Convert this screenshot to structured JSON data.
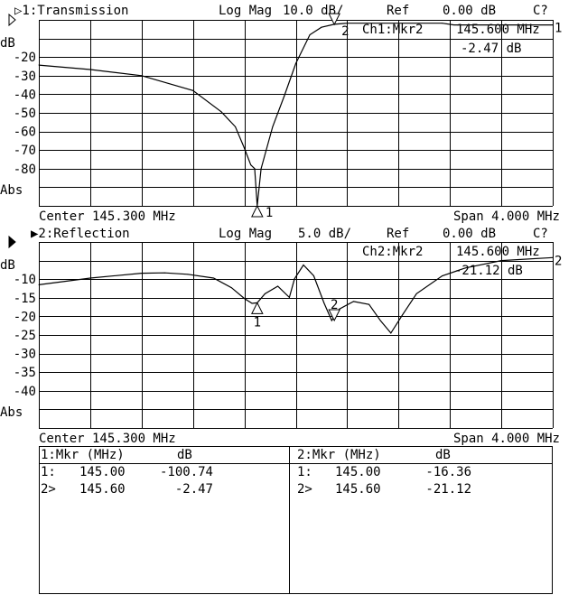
{
  "colors": {
    "background": "#ffffff",
    "trace": "#000000",
    "grid": "#000000"
  },
  "chart_data": [
    {
      "type": "line",
      "channel_label": "▷1:Transmission",
      "format": "Log Mag",
      "scale": "10.0 dB/",
      "ref_label": "Ref",
      "ref_value": "0.00 dB",
      "status": "C?",
      "ylabel": "dB",
      "yticks": [
        "-20",
        "-30",
        "-40",
        "-50",
        "-60",
        "-70",
        "-80"
      ],
      "ybottom_label": "Abs",
      "ylim": [
        -100,
        0
      ],
      "xlim": [
        143.3,
        147.3
      ],
      "grid": true,
      "center_label": "Center 145.300 MHz",
      "span_label": "Span 4.000 MHz",
      "trace_end_label": "1",
      "marker_readout": {
        "title": "Ch1:Mkr2",
        "freq": "145.600 MHz",
        "value": "-2.47 dB"
      },
      "markers": [
        {
          "id": "1",
          "freq": 145.0,
          "value": -100.74
        },
        {
          "id": "2",
          "freq": 145.6,
          "value": -2.47
        }
      ],
      "x": [
        143.3,
        143.7,
        144.1,
        144.5,
        144.72,
        144.83,
        144.9,
        144.95,
        144.98,
        145.0,
        145.03,
        145.12,
        145.21,
        145.3,
        145.41,
        145.5,
        145.6,
        145.7,
        146.44,
        146.53,
        147.3
      ],
      "y": [
        -24.3,
        -26.7,
        -30,
        -38,
        -49.4,
        -57.5,
        -69,
        -78,
        -80,
        -100,
        -80,
        -57.5,
        -41,
        -23.5,
        -8,
        -4,
        -2.4,
        -1.8,
        -1.8,
        -2.7,
        -2.7
      ]
    },
    {
      "type": "line",
      "channel_label": "▶2:Reflection",
      "format": "Log Mag",
      "scale": "5.0 dB/",
      "ref_label": "Ref",
      "ref_value": "0.00 dB",
      "status": "C?",
      "ylabel": "dB",
      "yticks": [
        "-10",
        "-15",
        "-20",
        "-25",
        "-30",
        "-35",
        "-40"
      ],
      "ybottom_label": "Abs",
      "ylim": [
        -50,
        0
      ],
      "xlim": [
        143.3,
        147.3
      ],
      "grid": true,
      "center_label": "Center 145.300 MHz",
      "span_label": "Span 4.000 MHz",
      "trace_end_label": "2",
      "marker_readout": {
        "title": "Ch2:Mkr2",
        "freq": "145.600 MHz",
        "value": "-21.12 dB"
      },
      "markers": [
        {
          "id": "1",
          "freq": 145.0,
          "value": -16.36
        },
        {
          "id": "2",
          "freq": 145.6,
          "value": -21.12
        }
      ],
      "x": [
        143.3,
        143.7,
        144.1,
        144.28,
        144.46,
        144.66,
        144.8,
        144.9,
        144.96,
        145.0,
        145.06,
        145.16,
        145.25,
        145.29,
        145.36,
        145.44,
        145.52,
        145.58,
        145.64,
        145.75,
        145.87,
        145.96,
        146.04,
        146.13,
        146.24,
        146.44,
        146.62,
        146.9,
        147.3
      ],
      "y": [
        -11.5,
        -9.7,
        -8.4,
        -8.3,
        -8.7,
        -9.7,
        -12.3,
        -15.2,
        -16.5,
        -16.36,
        -13.9,
        -11.9,
        -14.9,
        -9.9,
        -6.2,
        -9.1,
        -16.4,
        -21.12,
        -18,
        -16,
        -16.8,
        -21.2,
        -24.5,
        -19.6,
        -13.9,
        -9.1,
        -7,
        -5,
        -4.2
      ]
    }
  ],
  "marker_table": [
    {
      "header_mkr": "1:Mkr (MHz)",
      "header_db": "dB",
      "rows": [
        {
          "id": "1:",
          "freq": "145.00",
          "value": "-100.74"
        },
        {
          "id": "2>",
          "freq": "145.60",
          "value": "-2.47"
        }
      ]
    },
    {
      "header_mkr": "2:Mkr (MHz)",
      "header_db": "dB",
      "rows": [
        {
          "id": "1:",
          "freq": "145.00",
          "value": "-16.36"
        },
        {
          "id": "2>",
          "freq": "145.60",
          "value": "-21.12"
        }
      ]
    }
  ]
}
